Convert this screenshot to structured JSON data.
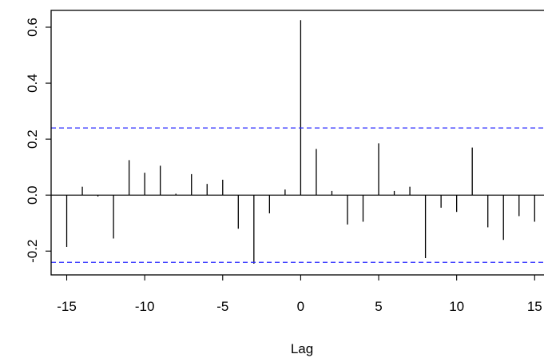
{
  "chart_data": {
    "type": "bar",
    "title": "",
    "xlabel": "Lag",
    "ylabel": "",
    "xlim": [
      -16,
      15.6
    ],
    "ylim": [
      -0.285,
      0.66
    ],
    "x_ticks": [
      -15,
      -10,
      -5,
      0,
      5,
      10,
      15
    ],
    "x_tick_labels": [
      "-15",
      "-10",
      "-5",
      "0",
      "5",
      "10",
      "15"
    ],
    "y_ticks": [
      -0.2,
      0.0,
      0.2,
      0.4,
      0.6
    ],
    "y_tick_labels": [
      "-0.2",
      "0.0",
      "0.2",
      "0.4",
      "0.6"
    ],
    "confidence_limit": 0.24,
    "confidence_color": "#2b2bff",
    "bar_color": "#000000",
    "grid": false,
    "series": [
      {
        "lags": [
          -15,
          -14,
          -13,
          -12,
          -11,
          -10,
          -9,
          -8,
          -7,
          -6,
          -5,
          -4,
          -3,
          -2,
          -1,
          0,
          1,
          2,
          3,
          4,
          5,
          6,
          7,
          8,
          9,
          10,
          11,
          12,
          13,
          14,
          15
        ],
        "values": [
          -0.185,
          0.03,
          -0.005,
          -0.155,
          0.125,
          0.08,
          0.105,
          0.005,
          0.075,
          0.04,
          0.055,
          -0.12,
          -0.245,
          -0.065,
          0.02,
          0.625,
          0.165,
          0.015,
          -0.105,
          -0.095,
          0.185,
          0.015,
          0.03,
          -0.225,
          -0.045,
          -0.06,
          0.17,
          -0.115,
          -0.16,
          -0.075,
          -0.095
        ]
      }
    ]
  }
}
